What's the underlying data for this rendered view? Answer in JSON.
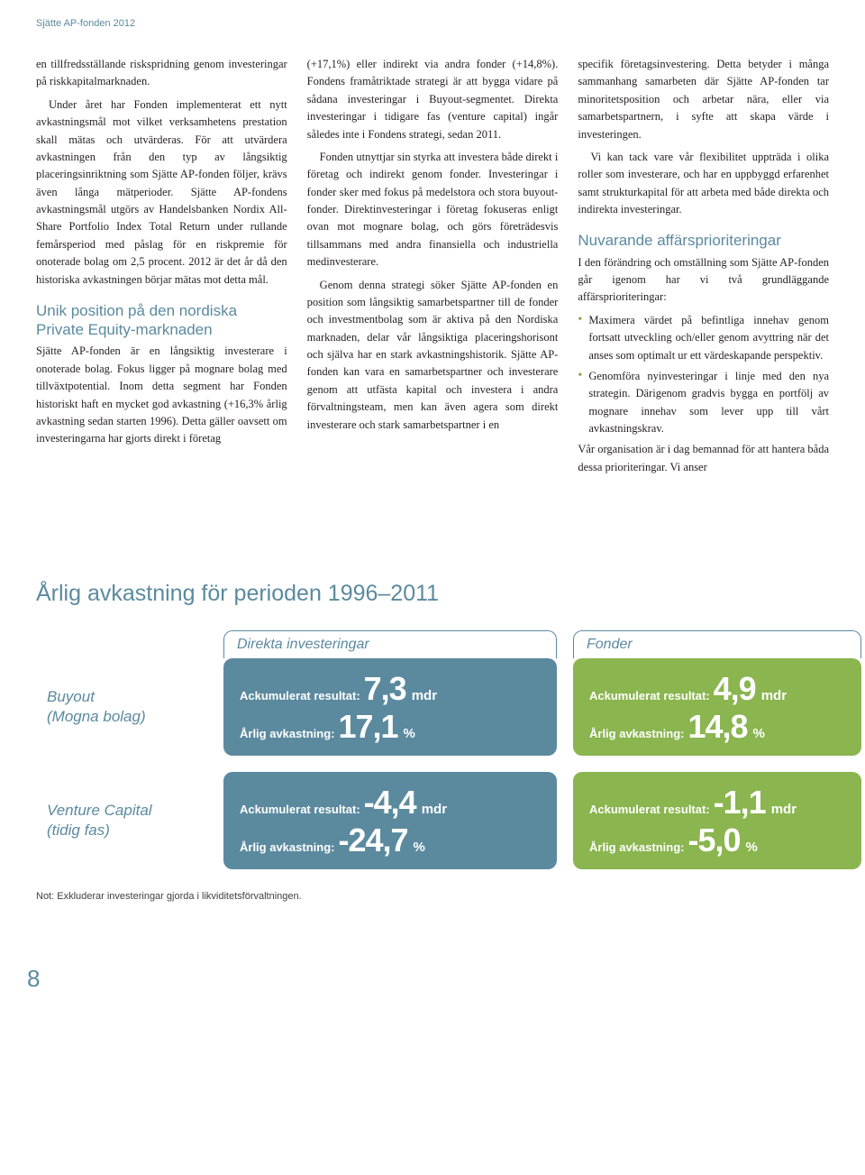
{
  "header": "Sjätte AP-fonden 2012",
  "columns": {
    "col1": {
      "p1": "en tillfredsställande riskspridning genom investeringar på riskkapitalmarknaden.",
      "p2": "Under året har Fonden implementerat ett nytt avkastningsmål mot vilket verksamhetens prestation skall mätas och utvärderas. För att utvärdera avkastningen från den typ av långsiktig placeringsinriktning som Sjätte AP-fonden följer, krävs även långa mätperioder. Sjätte AP-fondens avkastningsmål utgörs av Handelsbanken Nordix All-Share Portfolio Index Total Return under rullande femårsperiod med påslag för en riskpremie för onoterade bolag om 2,5 procent. 2012 är det år då den historiska avkastningen börjar mätas mot detta mål.",
      "sub1": "Unik position på den nordiska Private Equity-marknaden",
      "p3": "Sjätte AP-fonden är en långsiktig investerare i onoterade bolag. Fokus ligger på mognare bolag med tillväxtpotential. Inom detta segment har Fonden historiskt haft en mycket god avkastning (+16,3% årlig avkastning sedan starten 1996). Detta gäller oavsett om investeringarna har gjorts direkt i företag"
    },
    "col2": {
      "p1": "(+17,1%) eller indirekt via andra fonder (+14,8%). Fondens framåtriktade strategi är att bygga vidare på sådana investeringar i Buyout-segmentet. Direkta investeringar i tidigare fas (venture capital) ingår således inte i Fondens strategi, sedan 2011.",
      "p2": "Fonden utnyttjar sin styrka att investera både direkt i företag och indirekt genom fonder. Investeringar i fonder sker med fokus på medelstora och stora buyout-fonder. Direktinvesteringar i företag fokuseras enligt ovan mot mognare bolag, och görs företrädesvis tillsammans med andra finansiella och industriella medinvesterare.",
      "p3": "Genom denna strategi söker Sjätte AP-fonden en position som långsiktig samarbetspartner till de fonder och investmentbolag som är aktiva på den Nordiska marknaden, delar vår långsiktiga placeringshorisont och själva har en stark avkastningshistorik. Sjätte AP-fonden kan vara en samarbetspartner och investerare genom att utfästa kapital och investera i andra förvaltningsteam, men kan även agera som direkt investerare och stark samarbetspartner i en"
    },
    "col3": {
      "p1": "specifik företagsinvestering. Detta betyder i många sammanhang samarbeten där Sjätte AP-fonden tar minoritetsposition och arbetar nära, eller via samarbetspartnern, i syfte att skapa värde i investeringen.",
      "p2": "Vi kan tack vare vår flexibilitet uppträda i olika roller som investerare, och har en uppbyggd erfarenhet samt strukturkapital för att arbeta med både direkta och indirekta investeringar.",
      "sub1": "Nuvarande affärsprioriteringar",
      "p3": "I den förändring och omställning som Sjätte AP-fonden går igenom har vi två grundläggande affärsprioriteringar:",
      "bullets": [
        "Maximera värdet på befintliga innehav genom fortsatt utveckling och/eller genom avyttring när det anses som optimalt ur ett värdeskapande perspektiv.",
        "Genomföra nyinvesteringar i linje med den nya strategin. Därigenom gradvis bygga en portfölj av mognare innehav som lever upp till vårt avkastningskrav."
      ],
      "p4": "Vår organisation är i dag bemannad för att hantera båda dessa prioriteringar. Vi anser"
    }
  },
  "chart": {
    "title": "Årlig avkastning för perioden 1996–2011",
    "colHeaders": {
      "direct": "Direkta investeringar",
      "funds": "Fonder"
    },
    "rowLabels": {
      "buyout": "Buyout\n(Mogna bolag)",
      "venture": "Venture Capital\n(tidig fas)"
    },
    "labels": {
      "accumulated": "Ackumulerat resultat:",
      "annual": "Årlig avkastning:",
      "mdr": "mdr",
      "pct": "%"
    },
    "colors": {
      "blue": "#5b8a9f",
      "green": "#8ab54f",
      "white": "#ffffff"
    },
    "cells": {
      "buyout_direct": {
        "bg": "#5b8a9f",
        "accumulated": "7,3",
        "annual": "17,1"
      },
      "buyout_funds": {
        "bg": "#8ab54f",
        "accumulated": "4,9",
        "annual": "14,8"
      },
      "venture_direct": {
        "bg": "#5b8a9f",
        "accumulated": "-4,4",
        "annual": "-24,7"
      },
      "venture_funds": {
        "bg": "#8ab54f",
        "accumulated": "-1,1",
        "annual": "-5,0"
      }
    },
    "note": "Not: Exkluderar investeringar gjorda i likviditetsförvaltningen."
  },
  "pageNumber": "8"
}
